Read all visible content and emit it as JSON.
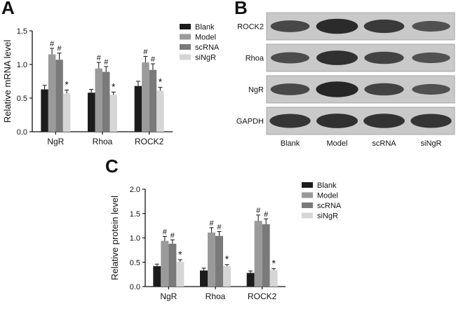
{
  "panels": {
    "a": {
      "letter": "A"
    },
    "b": {
      "letter": "B"
    },
    "c": {
      "letter": "C"
    }
  },
  "colors": {
    "Blank": "#1c1c1c",
    "Model": "#9a9a9a",
    "scRNA": "#7a7a7a",
    "siNgR": "#d6d6d6",
    "axis": "#111111"
  },
  "chart_data": [
    {
      "id": "A",
      "type": "bar",
      "ylabel": "Relative mRNA level",
      "xlabel": "",
      "ylim": [
        0,
        1.5
      ],
      "yticks": [
        "0.0",
        "0.5",
        "1.0",
        "1.5"
      ],
      "categories": [
        "NgR",
        "Rhoa",
        "ROCK2"
      ],
      "series": [
        {
          "name": "Blank",
          "values": [
            0.63,
            0.58,
            0.68
          ],
          "errors": [
            0.06,
            0.05,
            0.07
          ],
          "marks": [
            "",
            "",
            ""
          ]
        },
        {
          "name": "Model",
          "values": [
            1.15,
            0.94,
            1.03
          ],
          "errors": [
            0.09,
            0.09,
            0.09
          ],
          "marks": [
            "#",
            "#",
            "#"
          ]
        },
        {
          "name": "scRNA",
          "values": [
            1.07,
            0.89,
            0.92
          ],
          "errors": [
            0.1,
            0.08,
            0.09
          ],
          "marks": [
            "#",
            "#",
            "#"
          ]
        },
        {
          "name": "siNgR",
          "values": [
            0.57,
            0.55,
            0.61
          ],
          "errors": [
            0.05,
            0.04,
            0.05
          ],
          "marks": [
            "*",
            "*",
            "*"
          ]
        }
      ],
      "legend": "top-right"
    },
    {
      "id": "C",
      "type": "bar",
      "ylabel": "Relative protein level",
      "xlabel": "",
      "ylim": [
        0,
        2.0
      ],
      "yticks": [
        "0.0",
        "0.5",
        "1.0",
        "1.5",
        "2.0"
      ],
      "categories": [
        "NgR",
        "Rhoa",
        "ROCK2"
      ],
      "series": [
        {
          "name": "Blank",
          "values": [
            0.42,
            0.33,
            0.28
          ],
          "errors": [
            0.04,
            0.05,
            0.04
          ],
          "marks": [
            "",
            "",
            ""
          ]
        },
        {
          "name": "Model",
          "values": [
            0.94,
            1.11,
            1.35
          ],
          "errors": [
            0.09,
            0.1,
            0.12
          ],
          "marks": [
            "#",
            "#",
            "#"
          ]
        },
        {
          "name": "scRNA",
          "values": [
            0.88,
            1.04,
            1.28
          ],
          "errors": [
            0.08,
            0.09,
            0.11
          ],
          "marks": [
            "#",
            "#",
            "#"
          ]
        },
        {
          "name": "siNgR",
          "values": [
            0.51,
            0.42,
            0.34
          ],
          "errors": [
            0.04,
            0.03,
            0.03
          ],
          "marks": [
            "*",
            "*",
            "*"
          ]
        }
      ],
      "legend": "top-right"
    }
  ],
  "western_blot": {
    "rows": [
      "ROCK2",
      "Rhoa",
      "NgR",
      "GAPDH"
    ],
    "lanes": [
      "Blank",
      "Model",
      "scRNA",
      "siNgR"
    ],
    "intensity": [
      [
        0.55,
        0.85,
        0.7,
        0.45
      ],
      [
        0.5,
        0.8,
        0.6,
        0.45
      ],
      [
        0.55,
        0.9,
        0.6,
        0.45
      ],
      [
        0.75,
        0.8,
        0.78,
        0.75
      ]
    ]
  }
}
